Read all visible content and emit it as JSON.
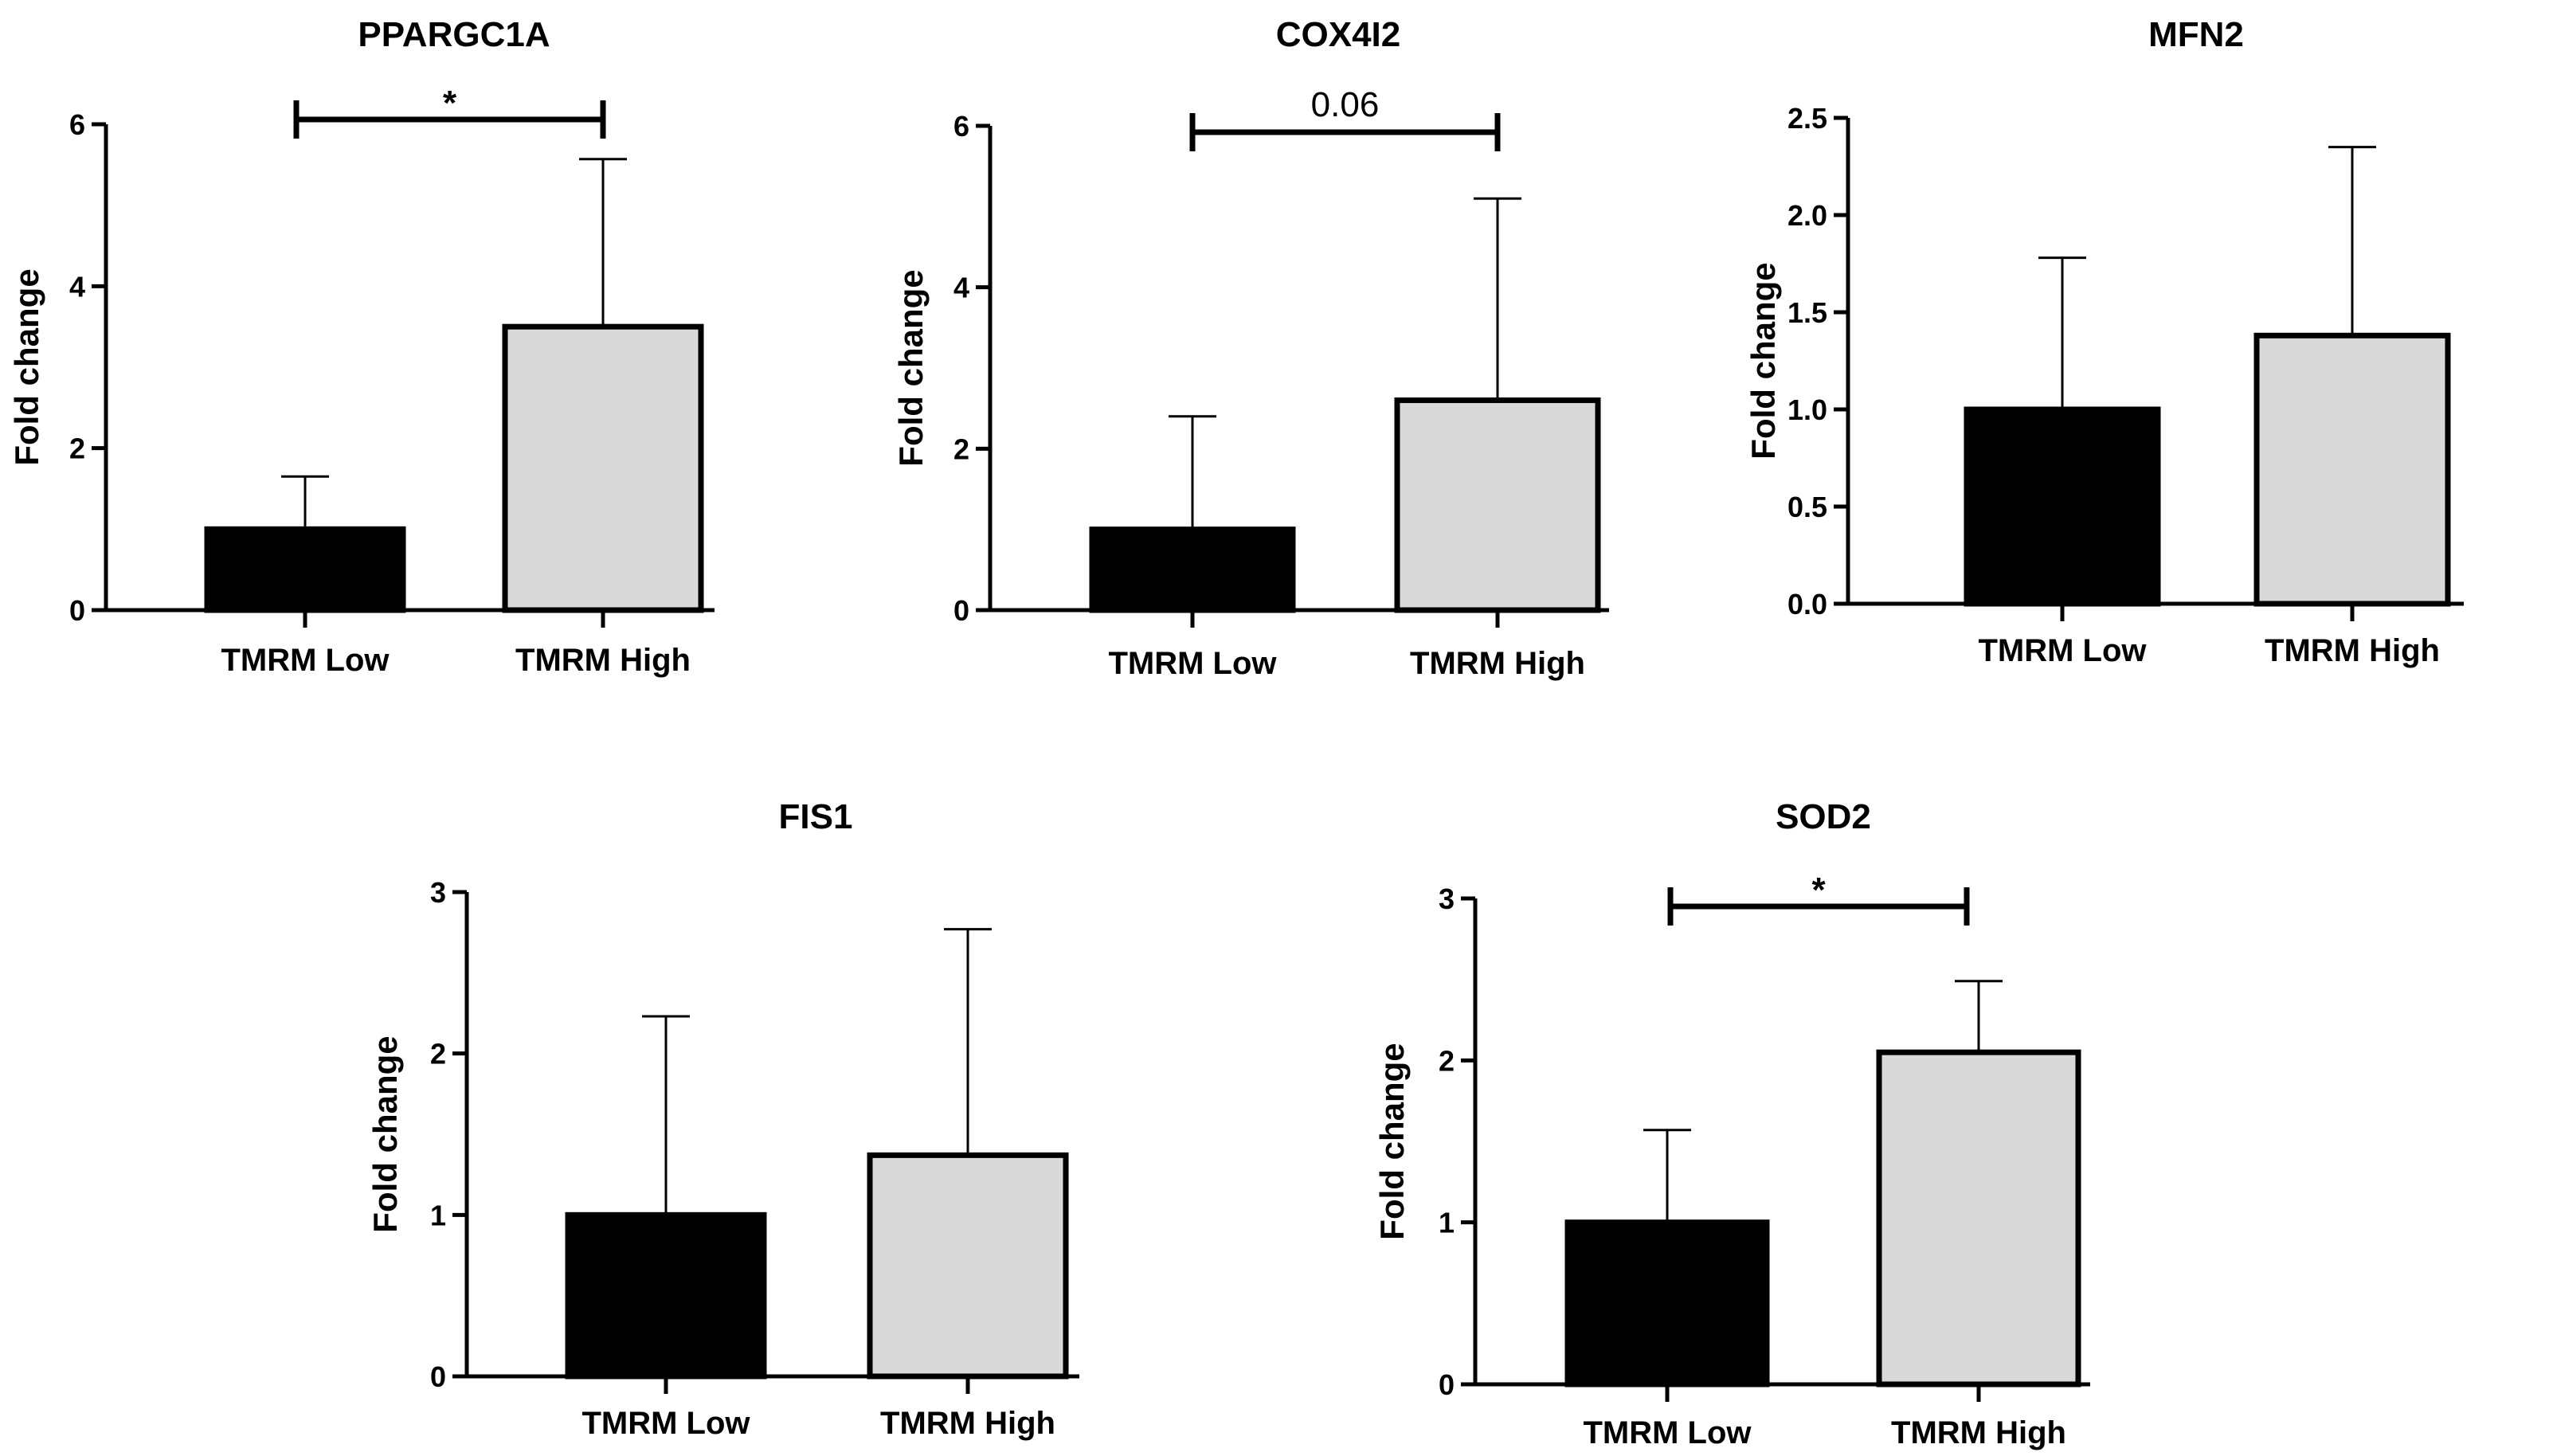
{
  "colors": {
    "low": "#000000",
    "high": "#d9d9d9",
    "stroke": "#000000"
  },
  "chart_data": [
    {
      "type": "bar",
      "title": "PPARGC1A",
      "ylabel": "Fold change",
      "xlabel": "",
      "categories": [
        "TMRM Low",
        "TMRM High"
      ],
      "values": [
        1.0,
        3.5
      ],
      "errors": [
        0.65,
        2.07
      ],
      "ylim": [
        0,
        6
      ],
      "yticks": [
        "0",
        "2",
        "4",
        "6"
      ],
      "significance": "*"
    },
    {
      "type": "bar",
      "title": "COX4I2",
      "ylabel": "Fold change",
      "xlabel": "",
      "categories": [
        "TMRM Low",
        "TMRM High"
      ],
      "values": [
        1.0,
        2.6
      ],
      "errors": [
        1.4,
        2.5
      ],
      "ylim": [
        0,
        6
      ],
      "yticks": [
        "0",
        "2",
        "4",
        "6"
      ],
      "significance": "0.06"
    },
    {
      "type": "bar",
      "title": "MFN2",
      "ylabel": "Fold change",
      "xlabel": "",
      "categories": [
        "TMRM Low",
        "TMRM High"
      ],
      "values": [
        1.0,
        1.38
      ],
      "errors": [
        0.78,
        0.97
      ],
      "ylim": [
        0,
        2.5
      ],
      "yticks": [
        "0.0",
        "0.5",
        "1.0",
        "1.5",
        "2.0",
        "2.5"
      ],
      "significance": ""
    },
    {
      "type": "bar",
      "title": "FIS1",
      "ylabel": "Fold change",
      "xlabel": "",
      "categories": [
        "TMRM Low",
        "TMRM High"
      ],
      "values": [
        1.0,
        1.37
      ],
      "errors": [
        1.23,
        1.4
      ],
      "ylim": [
        0,
        3
      ],
      "yticks": [
        "0",
        "1",
        "2",
        "3"
      ],
      "significance": ""
    },
    {
      "type": "bar",
      "title": "SOD2",
      "ylabel": "Fold change",
      "xlabel": "",
      "categories": [
        "TMRM Low",
        "TMRM High"
      ],
      "values": [
        1.0,
        2.05
      ],
      "errors": [
        0.57,
        0.44
      ],
      "ylim": [
        0,
        3
      ],
      "yticks": [
        "0",
        "1",
        "2",
        "3"
      ],
      "significance": "*"
    }
  ]
}
